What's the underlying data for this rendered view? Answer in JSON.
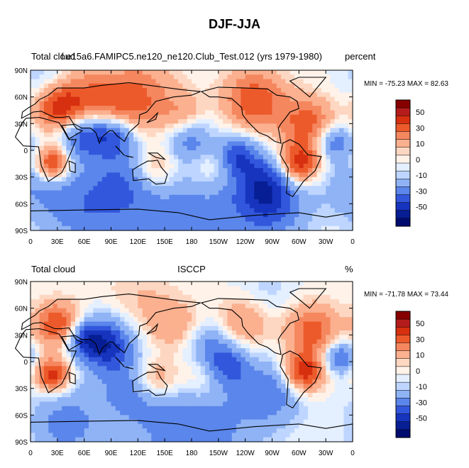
{
  "figure": {
    "title": "DJF-JJA"
  },
  "panels": [
    {
      "left_label": "Total cloud",
      "center_label": "f.e15a6.FAMIPC5.ne120_ne120.Club_Test.012 (yrs 1979-1980)",
      "right_label": "percent",
      "minmax": "MIN = -75.23 MAX =  82.63",
      "blobs": [
        {
          "lon": 60,
          "lat": 48,
          "r": 40,
          "v": 40
        },
        {
          "lon": 30,
          "lat": 50,
          "r": 25,
          "v": 35
        },
        {
          "lon": 110,
          "lat": 45,
          "r": 35,
          "v": 30
        },
        {
          "lon": 25,
          "lat": -15,
          "r": 18,
          "v": 50
        },
        {
          "lon": 60,
          "lat": 20,
          "r": 28,
          "v": -50
        },
        {
          "lon": 95,
          "lat": 20,
          "r": 25,
          "v": -40
        },
        {
          "lon": 140,
          "lat": -20,
          "r": 28,
          "v": 30
        },
        {
          "lon": 300,
          "lat": -15,
          "r": 22,
          "v": 50
        },
        {
          "lon": 250,
          "lat": 55,
          "r": 35,
          "v": 40
        },
        {
          "lon": 310,
          "lat": 30,
          "r": 30,
          "v": 35
        },
        {
          "lon": 230,
          "lat": -5,
          "r": 22,
          "v": -35
        },
        {
          "lon": 260,
          "lat": -35,
          "r": 30,
          "v": -25
        },
        {
          "lon": 180,
          "lat": 10,
          "r": 25,
          "v": -25
        },
        {
          "lon": 200,
          "lat": -15,
          "r": 30,
          "v": 20
        },
        {
          "lon": 110,
          "lat": -30,
          "r": 40,
          "v": -20
        },
        {
          "lon": 0,
          "lat": -40,
          "r": 35,
          "v": -15
        },
        {
          "lon": 180,
          "lat": -70,
          "r": 80,
          "v": -25
        },
        {
          "lon": 60,
          "lat": -65,
          "r": 50,
          "v": -25
        },
        {
          "lon": 270,
          "lat": -60,
          "r": 40,
          "v": -30
        },
        {
          "lon": 170,
          "lat": 40,
          "r": 25,
          "v": 20
        },
        {
          "lon": 340,
          "lat": 10,
          "r": 20,
          "v": -30
        },
        {
          "lon": 20,
          "lat": 75,
          "r": 30,
          "v": -15
        },
        {
          "lon": 130,
          "lat": 75,
          "r": 40,
          "v": 15
        }
      ]
    },
    {
      "left_label": "Total cloud",
      "center_label": "ISCCP",
      "right_label": "%",
      "minmax": "MIN = -71.78 MAX =  73.44",
      "blobs": [
        {
          "lon": 30,
          "lat": 42,
          "r": 25,
          "v": 40
        },
        {
          "lon": 25,
          "lat": -15,
          "r": 18,
          "v": 50
        },
        {
          "lon": 85,
          "lat": 20,
          "r": 30,
          "v": -45
        },
        {
          "lon": 60,
          "lat": 25,
          "r": 20,
          "v": -30
        },
        {
          "lon": 140,
          "lat": -20,
          "r": 25,
          "v": 30
        },
        {
          "lon": 305,
          "lat": -12,
          "r": 22,
          "v": 50
        },
        {
          "lon": 315,
          "lat": 35,
          "r": 30,
          "v": 35
        },
        {
          "lon": 240,
          "lat": 45,
          "r": 30,
          "v": 25
        },
        {
          "lon": 160,
          "lat": 40,
          "r": 30,
          "v": 20
        },
        {
          "lon": 220,
          "lat": -5,
          "r": 25,
          "v": -30
        },
        {
          "lon": 270,
          "lat": -35,
          "r": 35,
          "v": -25
        },
        {
          "lon": 110,
          "lat": -30,
          "r": 35,
          "v": -20
        },
        {
          "lon": 180,
          "lat": -72,
          "r": 70,
          "v": -30
        },
        {
          "lon": 40,
          "lat": -70,
          "r": 40,
          "v": -25
        },
        {
          "lon": 200,
          "lat": 20,
          "r": 25,
          "v": -20
        },
        {
          "lon": 190,
          "lat": -20,
          "r": 30,
          "v": 20
        },
        {
          "lon": 345,
          "lat": 5,
          "r": 18,
          "v": -35
        },
        {
          "lon": 120,
          "lat": 70,
          "r": 40,
          "v": 10
        },
        {
          "lon": 260,
          "lat": 70,
          "r": 35,
          "v": -10
        }
      ]
    }
  ],
  "axes": {
    "x_ticks": [
      "0",
      "30E",
      "60E",
      "90E",
      "120E",
      "150E",
      "180",
      "150W",
      "120W",
      "90W",
      "60W",
      "30W",
      "0"
    ],
    "y_ticks": [
      "90N",
      "60N",
      "30N",
      "0",
      "30S",
      "60S",
      "90S"
    ]
  },
  "colorbar": {
    "labels": [
      "50",
      "30",
      "10",
      "0",
      "-10",
      "-30",
      "-50"
    ],
    "colors": [
      "#870000",
      "#b41c1c",
      "#d73010",
      "#ec5a2b",
      "#f5875f",
      "#fbb08f",
      "#fdd7c2",
      "#fff2e9",
      "#e4efff",
      "#bed6ff",
      "#8fb3f5",
      "#5b86eb",
      "#3257dc",
      "#1634bd",
      "#071e94",
      "#000b70"
    ]
  }
}
